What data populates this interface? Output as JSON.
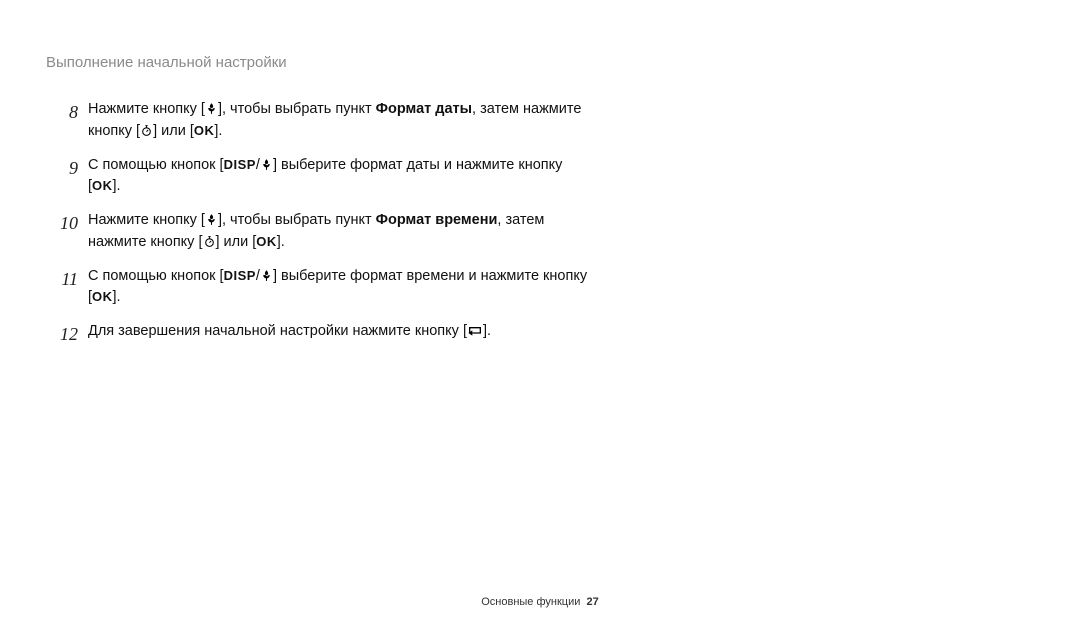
{
  "header": {
    "title": "Выполнение начальной настройки"
  },
  "icons": {
    "macro_name": "macro-icon",
    "timer_name": "timer-icon",
    "ok_label": "OK",
    "disp_label": "DISP",
    "back_name": "back-icon"
  },
  "steps": [
    {
      "num": "8",
      "parts": [
        {
          "t": "text",
          "v": "Нажмите кнопку ["
        },
        {
          "t": "icon",
          "v": "macro"
        },
        {
          "t": "text",
          "v": "], чтобы выбрать пункт "
        },
        {
          "t": "bold",
          "v": "Формат даты"
        },
        {
          "t": "text",
          "v": ", затем нажмите кнопку ["
        },
        {
          "t": "icon",
          "v": "timer"
        },
        {
          "t": "text",
          "v": "] или ["
        },
        {
          "t": "ok",
          "v": "OK"
        },
        {
          "t": "text",
          "v": "]."
        }
      ]
    },
    {
      "num": "9",
      "parts": [
        {
          "t": "text",
          "v": "С помощью кнопок ["
        },
        {
          "t": "disp",
          "v": "DISP"
        },
        {
          "t": "text",
          "v": "/"
        },
        {
          "t": "icon",
          "v": "macro"
        },
        {
          "t": "text",
          "v": "] выберите формат даты и нажмите кнопку ["
        },
        {
          "t": "ok",
          "v": "OK"
        },
        {
          "t": "text",
          "v": "]."
        }
      ]
    },
    {
      "num": "10",
      "parts": [
        {
          "t": "text",
          "v": "Нажмите кнопку ["
        },
        {
          "t": "icon",
          "v": "macro"
        },
        {
          "t": "text",
          "v": "], чтобы выбрать пункт "
        },
        {
          "t": "bold",
          "v": "Формат времени"
        },
        {
          "t": "text",
          "v": ", затем нажмите кнопку ["
        },
        {
          "t": "icon",
          "v": "timer"
        },
        {
          "t": "text",
          "v": "] или ["
        },
        {
          "t": "ok",
          "v": "OK"
        },
        {
          "t": "text",
          "v": "]."
        }
      ]
    },
    {
      "num": "11",
      "parts": [
        {
          "t": "text",
          "v": "С помощью кнопок ["
        },
        {
          "t": "disp",
          "v": "DISP"
        },
        {
          "t": "text",
          "v": "/"
        },
        {
          "t": "icon",
          "v": "macro"
        },
        {
          "t": "text",
          "v": "] выберите формат времени и нажмите кнопку ["
        },
        {
          "t": "ok",
          "v": "OK"
        },
        {
          "t": "text",
          "v": "]."
        }
      ]
    },
    {
      "num": "12",
      "parts": [
        {
          "t": "text",
          "v": "Для завершения начальной настройки нажмите кнопку ["
        },
        {
          "t": "icon",
          "v": "back"
        },
        {
          "t": "text",
          "v": "]."
        }
      ]
    }
  ],
  "footer": {
    "section": "Основные функции",
    "page": "27"
  },
  "style": {
    "page_bg": "#ffffff",
    "header_color": "#8a8a8a",
    "body_color": "#111111",
    "num_font": "italic serif"
  }
}
